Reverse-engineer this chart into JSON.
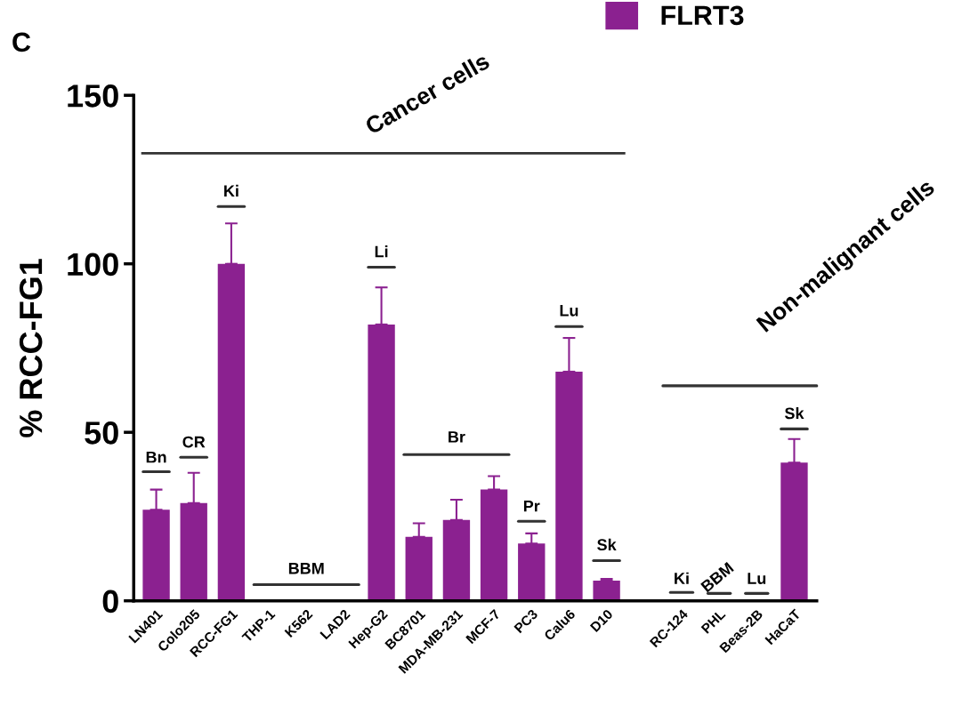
{
  "chart_data": {
    "type": "bar",
    "categories": [
      "LN401",
      "Colo205",
      "RCC-FG1",
      "THP-1",
      "K562",
      "LAD2",
      "Hep-G2",
      "BC8701",
      "MDA-MB-231",
      "MCF-7",
      "PC3",
      "Calu6",
      "D10",
      null,
      "RC-124",
      "PHL",
      "Beas-2B",
      "HaCaT"
    ],
    "series": [
      {
        "name": "FLRT3",
        "color": "#8b2190",
        "values": [
          27,
          29,
          100,
          0,
          0,
          0,
          82,
          19,
          24,
          33,
          17,
          68,
          6,
          null,
          0,
          0,
          0,
          41
        ],
        "errors": [
          6,
          9,
          12,
          null,
          null,
          null,
          11,
          4,
          6,
          4,
          3,
          10,
          0.5,
          null,
          null,
          null,
          null,
          7
        ]
      }
    ],
    "ylabel": "% RCC-FG1",
    "ylim": [
      0,
      150
    ],
    "yticks": [
      0,
      50,
      100,
      150
    ],
    "grid": false,
    "legend": "top right",
    "annotations": [
      "C",
      "Cancer cells",
      "Bn",
      "CR",
      "Ki",
      "BBM",
      "Li",
      "Br",
      "Pr",
      "Lu",
      "Sk",
      "Non-malignant cells",
      "Ki",
      "BBM",
      "Lu",
      "Sk"
    ]
  }
}
